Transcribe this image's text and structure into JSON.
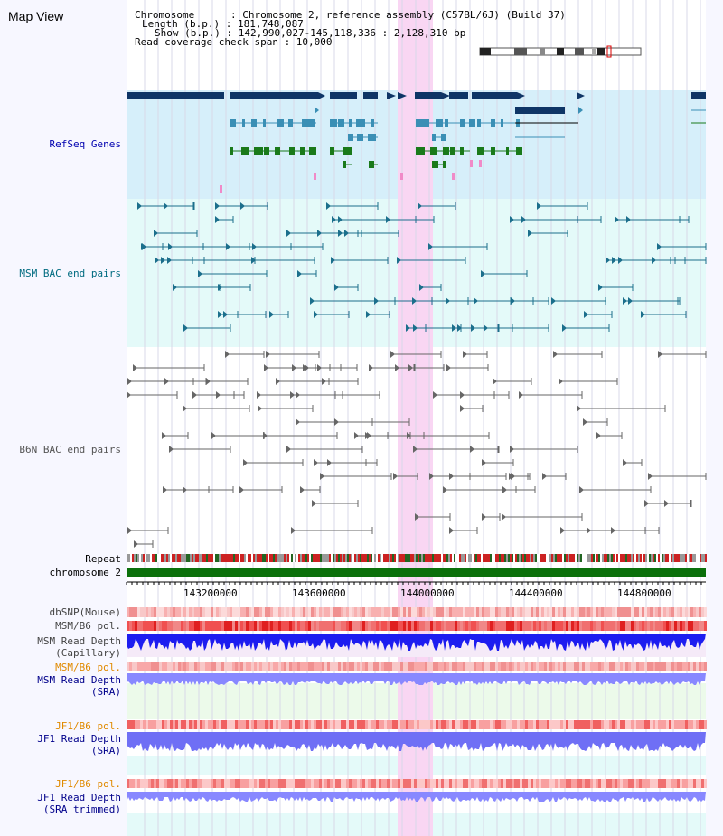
{
  "map": {
    "title": "Map View"
  },
  "header": {
    "chromosome": "Chromosome      : Chromosome 2, reference assembly (C57BL/6J) (Build 37)",
    "length": "Length (b.p.) : 181,748,087",
    "show": "Show (b.p.) : 142,990,027-145,118,336 : 2,128,310 bp",
    "read_check": "Read coverage check span : 10,000"
  },
  "tracks": {
    "refseq": "RefSeq Genes",
    "msm_bac": "MSM BAC end pairs",
    "b6n_bac": "B6N BAC end pairs",
    "repeat": "Repeat",
    "chromosome": "chromosome 2",
    "dbsnp": "dbSNP(Mouse)",
    "msm_b6_pol": "MSM/B6 pol.",
    "msm_depth_cap_1": "MSM Read Depth",
    "msm_depth_cap_2": "(Capillary)",
    "msm_b6_pol_2": "MSM/B6 pol.",
    "msm_depth_sra_1": "MSM Read Depth",
    "msm_depth_sra_2": "(SRA)",
    "jf1_b6_pol": "JF1/B6 pol.",
    "jf1_depth_sra_1": "JF1 Read Depth",
    "jf1_depth_sra_2": "(SRA)",
    "jf1_b6_pol_2": "JF1/B6 pol.",
    "jf1_depth_trim_1": "JF1 Read Depth",
    "jf1_depth_trim_2": "(SRA trimmed)"
  },
  "axis": {
    "ticks": [
      "143200000",
      "143600000",
      "144000000",
      "144400000",
      "144800000"
    ]
  },
  "colors": {
    "refseq_bg": "#d6effa",
    "msm_bg": "#e4faf9",
    "gene_dark": "#0f3566",
    "gene_mid": "#3a8fb5",
    "gene_green": "#1a7a1a",
    "msm_line": "#1b6f8c",
    "b6n_line": "#666666",
    "highlight": "#f9d6f3",
    "chrom_green": "#0b700b",
    "depth_blue": "#1d1df0",
    "depth_light": "#8888ff",
    "label_navy": "#00008b",
    "label_teal": "#006b80",
    "label_orange": "#e08a00"
  }
}
